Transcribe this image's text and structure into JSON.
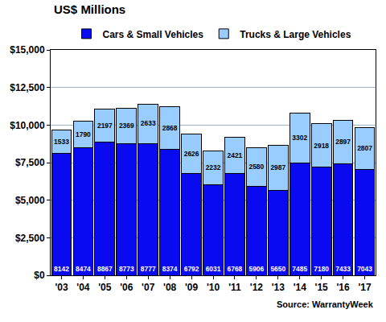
{
  "chart_data": {
    "type": "bar",
    "title": "US$ Millions",
    "categories": [
      "'03",
      "'04",
      "'05",
      "'06",
      "'07",
      "'08",
      "'09",
      "'10",
      "'11",
      "'12",
      "'13",
      "'14",
      "'15",
      "'16",
      "'17"
    ],
    "series": [
      {
        "name": "Cars & Small Vehicles",
        "color": "#0a0af0",
        "values": [
          8142,
          8474,
          8867,
          8773,
          8777,
          8374,
          6792,
          6031,
          6768,
          5906,
          5650,
          7485,
          7180,
          7433,
          7043
        ]
      },
      {
        "name": "Trucks & Large Vehicles",
        "color": "#99ccff",
        "values": [
          1533,
          1790,
          2197,
          2369,
          2633,
          2868,
          2626,
          2232,
          2421,
          2580,
          2987,
          3302,
          2918,
          2897,
          2807
        ]
      }
    ],
    "stacked": true,
    "data_labels": true,
    "ylim": [
      0,
      15000
    ],
    "yticks": [
      {
        "value": 0,
        "label": "$0"
      },
      {
        "value": 2500,
        "label": "$2,500"
      },
      {
        "value": 5000,
        "label": "$5,000"
      },
      {
        "value": 7500,
        "label": "$7,500"
      },
      {
        "value": 10000,
        "label": "$10,000"
      },
      {
        "value": 12500,
        "label": "$12,500"
      },
      {
        "value": 15000,
        "label": "$15,000"
      }
    ],
    "grid": true,
    "legend": "top",
    "annotations": [
      "Source: WarrantyWeek"
    ]
  }
}
